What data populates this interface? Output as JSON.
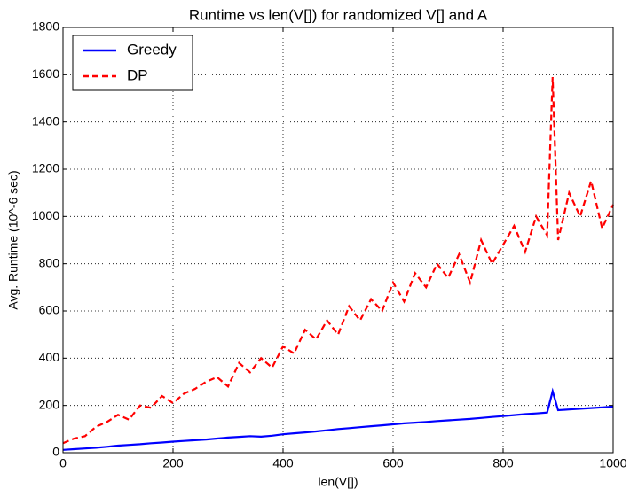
{
  "chart_data": {
    "type": "line",
    "title": "Runtime vs len(V[]) for randomized V[] and A",
    "xlabel": "len(V[])",
    "ylabel": "Avg. Runtime (10^-6 sec)",
    "x": [
      0,
      20,
      40,
      60,
      80,
      100,
      120,
      140,
      160,
      180,
      200,
      220,
      240,
      260,
      280,
      300,
      320,
      340,
      360,
      380,
      400,
      420,
      440,
      460,
      480,
      500,
      520,
      540,
      560,
      580,
      600,
      620,
      640,
      660,
      680,
      700,
      720,
      740,
      760,
      780,
      800,
      820,
      840,
      860,
      880,
      890,
      900,
      920,
      940,
      960,
      980,
      1000
    ],
    "series": [
      {
        "name": "Greedy",
        "color": "#0000ff",
        "linestyle": "solid",
        "values": [
          12,
          15,
          18,
          21,
          25,
          30,
          33,
          36,
          40,
          43,
          47,
          50,
          53,
          56,
          60,
          64,
          67,
          70,
          68,
          72,
          78,
          82,
          86,
          90,
          95,
          100,
          104,
          108,
          112,
          116,
          120,
          124,
          127,
          130,
          134,
          137,
          140,
          143,
          147,
          151,
          155,
          159,
          163,
          166,
          170,
          260,
          180,
          183,
          186,
          189,
          192,
          195
        ]
      },
      {
        "name": "DP",
        "color": "#ff0000",
        "linestyle": "dashed",
        "values": [
          40,
          60,
          70,
          110,
          130,
          160,
          140,
          200,
          190,
          240,
          210,
          250,
          270,
          300,
          320,
          280,
          380,
          340,
          400,
          360,
          450,
          420,
          520,
          480,
          560,
          500,
          620,
          560,
          650,
          600,
          720,
          640,
          760,
          700,
          800,
          740,
          840,
          720,
          900,
          800,
          880,
          960,
          850,
          1000,
          920,
          1590,
          900,
          1100,
          1000,
          1150,
          950,
          1050
        ]
      }
    ],
    "xlim": [
      0,
      1000
    ],
    "xticks": [
      0,
      200,
      400,
      600,
      800,
      1000
    ],
    "ylim": [
      0,
      1800
    ],
    "yticks": [
      0,
      200,
      400,
      600,
      800,
      1000,
      1200,
      1400,
      1600,
      1800
    ],
    "grid": true,
    "legend": "upper-left"
  }
}
